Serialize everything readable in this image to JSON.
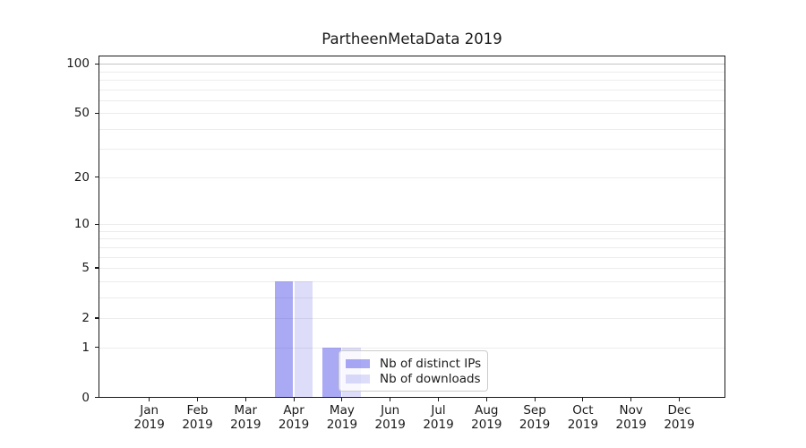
{
  "title": "PartheenMetaData 2019",
  "chart_data": {
    "type": "bar",
    "title": "PartheenMetaData 2019",
    "categories": [
      "Jan",
      "Feb",
      "Mar",
      "Apr",
      "May",
      "Jun",
      "Jul",
      "Aug",
      "Sep",
      "Oct",
      "Nov",
      "Dec"
    ],
    "year_label": "2019",
    "series": [
      {
        "name": "Nb of distinct IPs",
        "values": [
          0,
          0,
          0,
          4,
          1,
          0,
          0,
          0,
          0,
          0,
          0,
          0
        ],
        "color": "#4040e6",
        "alpha": 0.45
      },
      {
        "name": "Nb of downloads",
        "values": [
          0,
          0,
          0,
          4,
          1,
          0,
          0,
          0,
          0,
          0,
          0,
          0
        ],
        "color": "#4040e6",
        "alpha": 0.18
      }
    ],
    "xlabel": "",
    "ylabel": "",
    "y_scale": "log(1+y)",
    "y_tick_labels": [
      0,
      1,
      2,
      5,
      10,
      20,
      50,
      100
    ],
    "y_minor_gridlines": [
      3,
      4,
      6,
      7,
      8,
      9,
      30,
      40,
      60,
      70,
      80,
      90
    ],
    "ylim": [
      0,
      112
    ],
    "grid": "horizontal",
    "legend_position": "lower center",
    "legend_labels": [
      "Nb of distinct IPs",
      "Nb of downloads"
    ]
  },
  "colors": {
    "bar_base": "#4040e6",
    "gridline": "#ececec",
    "gridline_100": "#c4c4c4",
    "spine": "#1a1a1a",
    "text": "#1a1a1a",
    "legend_border": "#cccccc"
  }
}
